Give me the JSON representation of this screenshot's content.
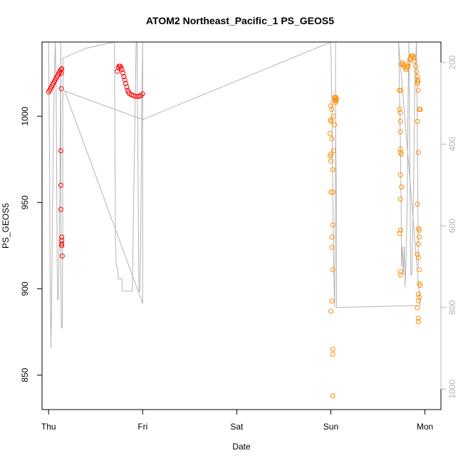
{
  "chart_data": {
    "type": "scatter",
    "title": "ATOM2 Northeast_Pacific_1 PS_GEOS5",
    "xlabel": "Date",
    "ylabel": "PS_GEOS5",
    "x_ticks": [
      "Thu",
      "Fri",
      "Sat",
      "Sun",
      "Mon"
    ],
    "x_range_days": [
      -0.07,
      4.17
    ],
    "y_ticks": [
      850,
      900,
      950,
      1000
    ],
    "ylim": [
      830,
      1043
    ],
    "y2_ticks": [
      200,
      400,
      600,
      800,
      1000
    ],
    "y2_range_top_to_bottom": [
      150,
      1050
    ],
    "series": [
      {
        "color": "#ff0000",
        "points": [
          [
            0.0,
            1014
          ],
          [
            0.01,
            1015
          ],
          [
            0.02,
            1016
          ],
          [
            0.03,
            1017
          ],
          [
            0.04,
            1018
          ],
          [
            0.05,
            1019
          ],
          [
            0.06,
            1020
          ],
          [
            0.07,
            1021
          ],
          [
            0.08,
            1022
          ],
          [
            0.09,
            1023
          ],
          [
            0.1,
            1024
          ],
          [
            0.11,
            1025
          ],
          [
            0.12,
            1026
          ],
          [
            0.13,
            1027
          ],
          [
            0.14,
            1027.5
          ],
          [
            0.135,
            1025
          ],
          [
            0.135,
            1016
          ],
          [
            0.13,
            980
          ],
          [
            0.13,
            960
          ],
          [
            0.13,
            946
          ],
          [
            0.14,
            930
          ],
          [
            0.14,
            928
          ],
          [
            0.14,
            926
          ],
          [
            0.14,
            925
          ],
          [
            0.145,
            919
          ],
          [
            0.73,
            1026
          ],
          [
            0.74,
            1028
          ],
          [
            0.75,
            1029
          ],
          [
            0.76,
            1029
          ],
          [
            0.77,
            1028
          ],
          [
            0.78,
            1027
          ],
          [
            0.79,
            1025
          ],
          [
            0.8,
            1023
          ],
          [
            0.81,
            1021
          ],
          [
            0.82,
            1019
          ],
          [
            0.83,
            1017
          ],
          [
            0.84,
            1015
          ],
          [
            0.85,
            1014
          ],
          [
            0.86,
            1013
          ],
          [
            0.88,
            1012.5
          ],
          [
            0.9,
            1012
          ],
          [
            0.92,
            1011.5
          ],
          [
            0.94,
            1011.5
          ],
          [
            0.96,
            1011.5
          ],
          [
            0.98,
            1012
          ],
          [
            1.0,
            1013
          ]
        ]
      },
      {
        "color": "#ff8c00",
        "points": [
          [
            3.0,
            1006
          ],
          [
            3.01,
            1004
          ],
          [
            3.0,
            998
          ],
          [
            3.0,
            997
          ],
          [
            2.99,
            990
          ],
          [
            3.01,
            987
          ],
          [
            2.99,
            977
          ],
          [
            3.0,
            978
          ],
          [
            3.0,
            974
          ],
          [
            3.02,
            969
          ],
          [
            3.0,
            956
          ],
          [
            3.02,
            956
          ],
          [
            3.02,
            937
          ],
          [
            3.01,
            930
          ],
          [
            3.01,
            924
          ],
          [
            3.02,
            911
          ],
          [
            3.01,
            893
          ],
          [
            3.0,
            887
          ],
          [
            3.02,
            865
          ],
          [
            3.02,
            862
          ],
          [
            3.02,
            838
          ],
          [
            3.03,
            1000
          ],
          [
            3.04,
            995
          ],
          [
            3.03,
            980
          ],
          [
            3.04,
            1009
          ],
          [
            3.045,
            1010
          ],
          [
            3.05,
            1011
          ],
          [
            3.055,
            1009
          ],
          [
            3.06,
            1010
          ],
          [
            3.04,
            1011
          ],
          [
            3.05,
            1008
          ],
          [
            3.73,
            1015
          ],
          [
            3.74,
            1015
          ],
          [
            3.73,
            1004
          ],
          [
            3.74,
            1002
          ],
          [
            3.74,
            997
          ],
          [
            3.74,
            991
          ],
          [
            3.74,
            981
          ],
          [
            3.75,
            978
          ],
          [
            3.74,
            979
          ],
          [
            3.74,
            966
          ],
          [
            3.75,
            959
          ],
          [
            3.74,
            952
          ],
          [
            3.74,
            934
          ],
          [
            3.73,
            932
          ],
          [
            3.74,
            910
          ],
          [
            3.74,
            908
          ],
          [
            3.75,
            1030
          ],
          [
            3.76,
            1031
          ],
          [
            3.77,
            1030
          ],
          [
            3.78,
            1029
          ],
          [
            3.79,
            1028
          ],
          [
            3.8,
            1027
          ],
          [
            3.81,
            1028
          ],
          [
            3.82,
            1029
          ],
          [
            3.83,
            1031
          ],
          [
            3.84,
            1033
          ],
          [
            3.85,
            1034
          ],
          [
            3.86,
            1035
          ],
          [
            3.87,
            1035
          ],
          [
            3.88,
            1034
          ],
          [
            3.89,
            1032
          ],
          [
            3.9,
            1029
          ],
          [
            3.91,
            1026
          ],
          [
            3.92,
            1023
          ],
          [
            3.925,
            1021
          ],
          [
            3.92,
            1019
          ],
          [
            3.925,
            1020
          ],
          [
            3.93,
            1015
          ],
          [
            3.92,
            997
          ],
          [
            3.94,
            1004
          ],
          [
            3.95,
            1004
          ],
          [
            3.93,
            979
          ],
          [
            3.92,
            949
          ],
          [
            3.93,
            935
          ],
          [
            3.94,
            934
          ],
          [
            3.94,
            930
          ],
          [
            3.93,
            926
          ],
          [
            3.92,
            920
          ],
          [
            3.93,
            918
          ],
          [
            3.94,
            911
          ],
          [
            3.94,
            903
          ],
          [
            3.95,
            902
          ],
          [
            3.93,
            897
          ],
          [
            3.94,
            895
          ],
          [
            3.93,
            893
          ],
          [
            3.92,
            889
          ],
          [
            3.93,
            883
          ],
          [
            3.93,
            881
          ]
        ]
      }
    ],
    "grey_line": {
      "color": "#b3b3b3",
      "axis": "y2",
      "points": [
        [
          0.0,
          150
        ],
        [
          0.01,
          450
        ],
        [
          0.015,
          700
        ],
        [
          0.02,
          800
        ],
        [
          0.025,
          900
        ],
        [
          0.03,
          820
        ],
        [
          0.04,
          600
        ],
        [
          0.05,
          400
        ],
        [
          0.06,
          250
        ],
        [
          0.07,
          150
        ],
        [
          0.07,
          150
        ],
        [
          0.08,
          250
        ],
        [
          0.085,
          450
        ],
        [
          0.09,
          650
        ],
        [
          0.095,
          780
        ],
        [
          0.1,
          780
        ],
        [
          0.105,
          780
        ],
        [
          0.11,
          680
        ],
        [
          0.12,
          500
        ],
        [
          0.125,
          300
        ],
        [
          0.13,
          150
        ],
        [
          0.13,
          150
        ],
        [
          0.13,
          400
        ],
        [
          0.13,
          700
        ],
        [
          0.135,
          850
        ],
        [
          0.14,
          850
        ],
        [
          0.145,
          850
        ],
        [
          0.15,
          600
        ],
        [
          0.15,
          300
        ],
        [
          0.155,
          250
        ],
        [
          0.15,
          190
        ],
        [
          0.4,
          165
        ],
        [
          0.7,
          150
        ],
        [
          0.71,
          630
        ],
        [
          0.72,
          700
        ],
        [
          0.73,
          700
        ],
        [
          0.74,
          730
        ],
        [
          0.75,
          730
        ],
        [
          0.78,
          730
        ],
        [
          0.78,
          760
        ],
        [
          0.84,
          760
        ],
        [
          0.89,
          760
        ],
        [
          0.9,
          600
        ],
        [
          0.92,
          300
        ],
        [
          0.93,
          150
        ],
        [
          0.94,
          150
        ],
        [
          0.95,
          450
        ],
        [
          0.96,
          760
        ],
        [
          0.97,
          760
        ],
        [
          0.98,
          600
        ],
        [
          0.99,
          300
        ],
        [
          1.0,
          150
        ],
        [
          1.0,
          150
        ],
        [
          1.0,
          300
        ],
        [
          1.0,
          500
        ],
        [
          1.0,
          700
        ],
        [
          1.0,
          790
        ],
        [
          0.17,
          270
        ],
        [
          1.0,
          340
        ],
        [
          3.0,
          150
        ],
        [
          3.01,
          300
        ],
        [
          3.02,
          500
        ],
        [
          3.03,
          700
        ],
        [
          3.04,
          800
        ],
        [
          3.04,
          790
        ],
        [
          3.05,
          500
        ],
        [
          3.05,
          300
        ],
        [
          3.05,
          150
        ],
        [
          3.05,
          350
        ],
        [
          3.06,
          550
        ],
        [
          3.06,
          800
        ],
        [
          3.95,
          795
        ],
        [
          3.72,
          150
        ],
        [
          3.74,
          400
        ],
        [
          3.75,
          600
        ],
        [
          3.75,
          700
        ],
        [
          3.76,
          650
        ],
        [
          3.77,
          720
        ],
        [
          3.78,
          650
        ],
        [
          3.79,
          750
        ],
        [
          3.8,
          680
        ],
        [
          3.81,
          560
        ],
        [
          3.82,
          300
        ],
        [
          3.83,
          150
        ],
        [
          3.84,
          450
        ],
        [
          3.85,
          720
        ],
        [
          3.86,
          720
        ],
        [
          3.87,
          620
        ],
        [
          3.88,
          500
        ],
        [
          3.89,
          300
        ],
        [
          3.9,
          200
        ],
        [
          3.91,
          150
        ],
        [
          3.92,
          400
        ],
        [
          3.93,
          700
        ]
      ]
    }
  }
}
